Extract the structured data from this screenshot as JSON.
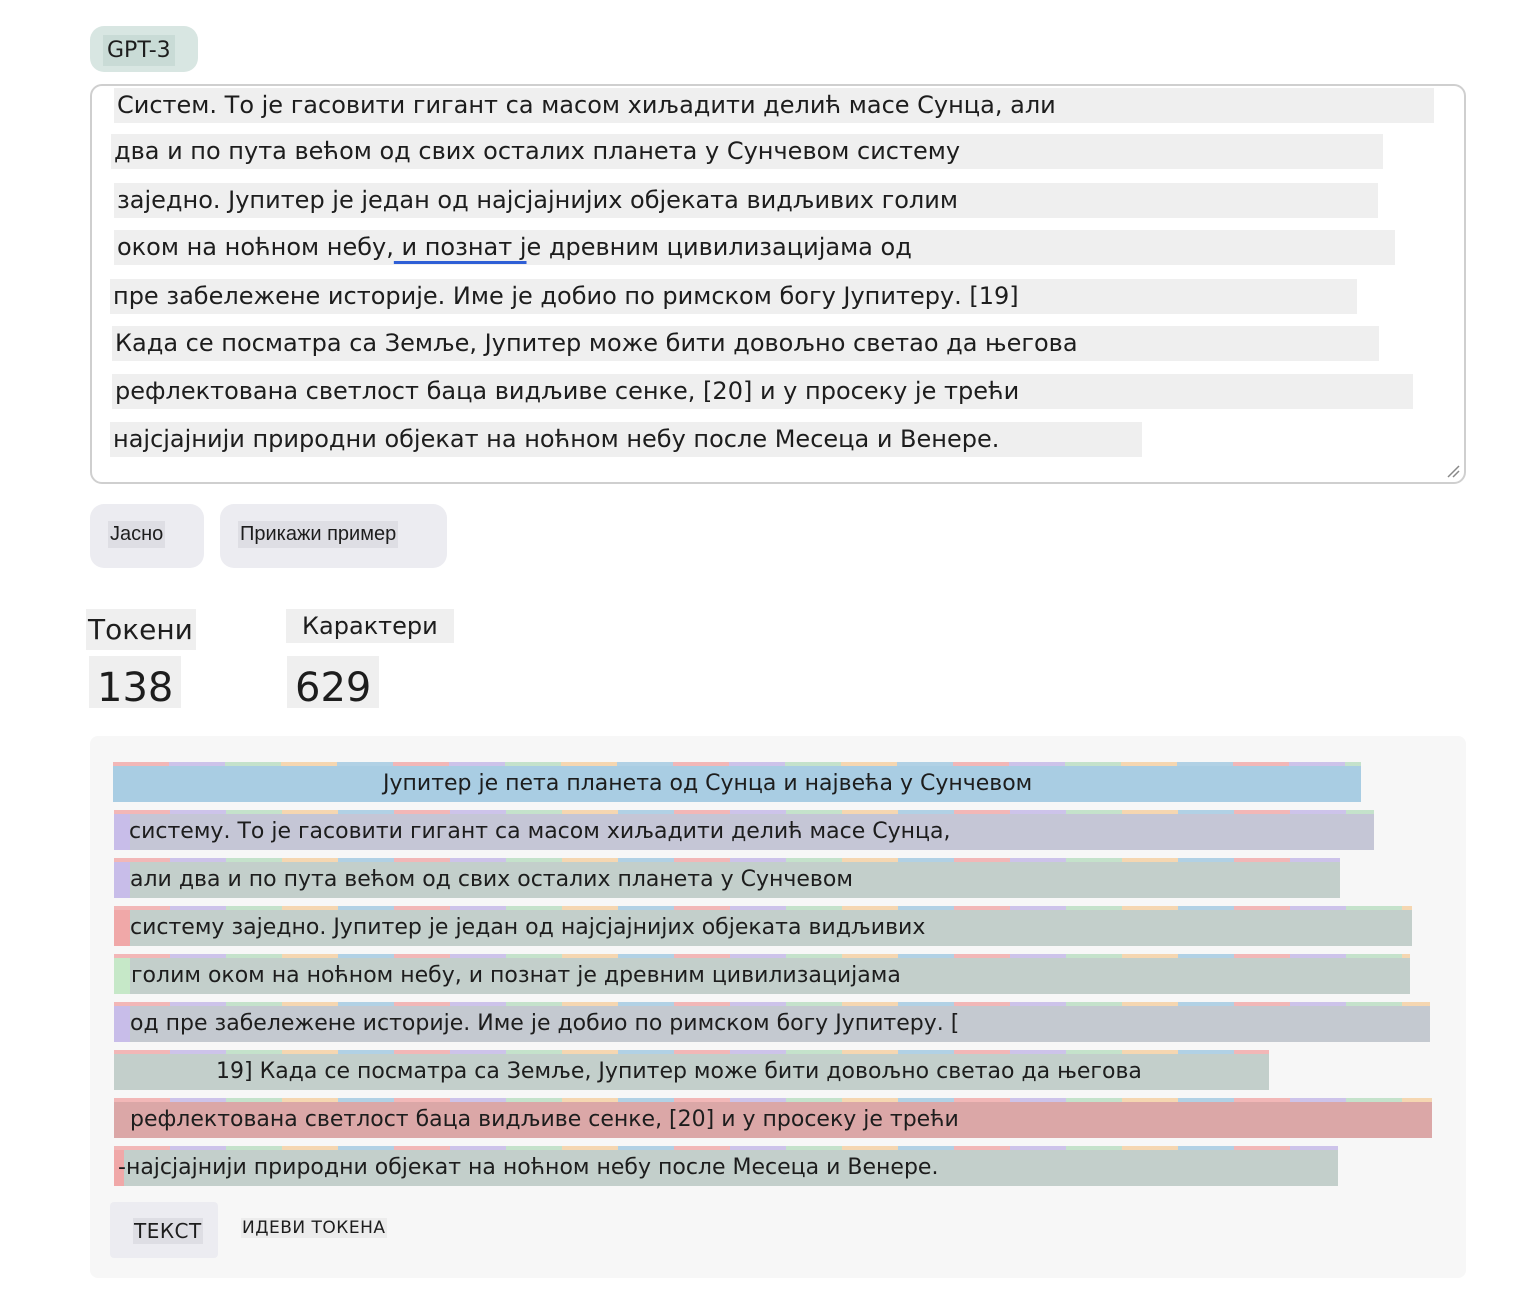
{
  "model_label": "GPT-3",
  "textarea_lines": [
    {
      "pre": "Систем. То је гасовити гигант са масом хиљадити делић масе Сунца, али",
      "u": "",
      "post": ""
    },
    {
      "pre": "два и по пута већом од свих осталих планета у Сунчевом систему",
      "u": "",
      "post": ""
    },
    {
      "pre": "заједно. Јупитер је један од најсјајнијих објеката видљивих голим",
      "u": "",
      "post": ""
    },
    {
      "pre": "оком на ноћном небу,",
      "u": " и познат ј",
      "post": "е древним цивилизацијама од"
    },
    {
      "pre": "пре забележене историје. Име је добио по римском богу Јупитеру. [19]",
      "u": "",
      "post": ""
    },
    {
      "pre": "Када се посматра са Земље, Јупитер може бити довољно светао да његова",
      "u": "",
      "post": ""
    },
    {
      "pre": "рефлектована светлост баца видљиве сенке, [20] и у просеку је трећи",
      "u": "",
      "post": ""
    },
    {
      "pre": "најсјајнији природни објекат на ноћном небу после Месеца и Венере.",
      "u": "",
      "post": ""
    }
  ],
  "buttons": {
    "clear": "Јасно",
    "show_example": "Прикажи пример"
  },
  "stats": {
    "tokens_label": "Токени",
    "tokens_value": "138",
    "chars_label": "Карактери",
    "chars_value": "629"
  },
  "token_rows": [
    "Јупитер је пета планета од Сунца и највећа у Сунчевом",
    "систему. То је гасовити гигант са масом хиљадити делић масе Сунца,",
    "али два и по пута већом од свих осталих планета у Сунчевом",
    "систему заједно. Јупитер је један од најсјајнијих објеката видљивих",
    "голим оком на ноћном небу, и познат је древним цивилизацијама",
    "од пре забележене историје. Име је добио по римском богу Јупитеру. [",
    "19] Када се посматра са Земље, Јупитер може бити довољно светао да његова",
    "рефлектована светлост баца видљиве сенке, [20] и у просеку је трећи",
    "-најсјајнији природни објекат на ноћном небу после Месеца и Венере."
  ],
  "token_colors": {
    "blue": "#a9cde3",
    "gray_purple": "#c5c6d6",
    "sage": "#c3cfcb",
    "red": "#dba7a7",
    "lead_purple": "#c8bde9",
    "lead_red": "#f0a8a8",
    "lead_green": "#c6e8c8"
  },
  "tabs": {
    "text": "ТЕКСТ",
    "token_ids": "ИДЕВИ ТОКЕНА"
  }
}
